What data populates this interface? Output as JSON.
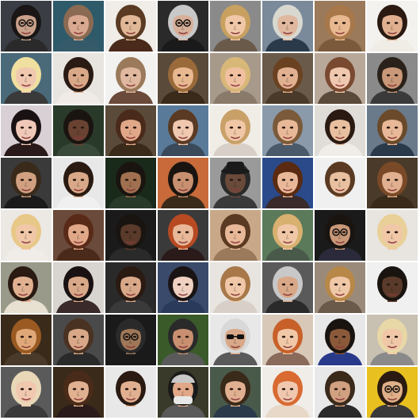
{
  "grid": {
    "rows": 8,
    "cols": 8,
    "tiles": [
      {
        "bg": "#3a3e44",
        "skin": "#c9a08a",
        "hair": "#1a1616",
        "shirt": "#2a2a2a",
        "icon": "face-with-glasses-icon"
      },
      {
        "bg": "#2f5a6a",
        "skin": "#d9a890",
        "hair": "#8a6a52",
        "shirt": "#355a6a",
        "icon": "face-icon"
      },
      {
        "bg": "#f0ede8",
        "skin": "#e0b898",
        "hair": "#5a3a22",
        "shirt": "#4a2a1a",
        "icon": "face-icon"
      },
      {
        "bg": "#2a2a2a",
        "skin": "#d8b09a",
        "hair": "#c8c8c8",
        "shirt": "#1a1a1a",
        "icon": "face-with-glasses-icon"
      },
      {
        "bg": "#8a8a8a",
        "skin": "#f0c8a8",
        "hair": "#c8a060",
        "shirt": "#6a5a4a",
        "icon": "face-icon"
      },
      {
        "bg": "#7a8a9a",
        "skin": "#e0b8a0",
        "hair": "#d8d8d0",
        "shirt": "#2a3a4a",
        "icon": "face-icon"
      },
      {
        "bg": "#9a7a5a",
        "skin": "#e8b890",
        "hair": "#a8784a",
        "shirt": "#7a5a3a",
        "icon": "face-icon"
      },
      {
        "bg": "#f4f2ee",
        "skin": "#e0b090",
        "hair": "#2a1a12",
        "shirt": "#f0ece6",
        "icon": "face-icon"
      },
      {
        "bg": "#4a6a7a",
        "skin": "#f0c8b0",
        "hair": "#f0e0a0",
        "shirt": "#3a3a3a",
        "icon": "face-icon"
      },
      {
        "bg": "#e8e4e0",
        "skin": "#d8a888",
        "hair": "#2a1a14",
        "shirt": "#f0ebe6",
        "icon": "face-icon"
      },
      {
        "bg": "#f2f2f0",
        "skin": "#e0b8a0",
        "hair": "#9a7a5a",
        "shirt": "#6a4a3a",
        "icon": "face-icon"
      },
      {
        "bg": "#5a4a3a",
        "skin": "#e8b890",
        "hair": "#9a6a3a",
        "shirt": "#3a2a1a",
        "icon": "face-icon"
      },
      {
        "bg": "#a89a8a",
        "skin": "#f0c0a0",
        "hair": "#d8b878",
        "shirt": "#8a7a6a",
        "icon": "face-icon"
      },
      {
        "bg": "#6a5a4a",
        "skin": "#e0b090",
        "hair": "#6a4222",
        "shirt": "#4a3a2a",
        "icon": "face-icon"
      },
      {
        "bg": "#b8a89a",
        "skin": "#f0c8b0",
        "hair": "#7a4a30",
        "shirt": "#5a4a3a",
        "icon": "face-icon"
      },
      {
        "bg": "#8a8a8a",
        "skin": "#c89878",
        "hair": "#2a221a",
        "shirt": "#3a3a3a",
        "icon": "face-icon"
      },
      {
        "bg": "#d8d0d4",
        "skin": "#f0c8b8",
        "hair": "#1a1212",
        "shirt": "#2a1a1a",
        "icon": "face-icon"
      },
      {
        "bg": "#2a3a2a",
        "skin": "#6a4232",
        "hair": "#1a1410",
        "shirt": "#3a4a3a",
        "icon": "face-icon"
      },
      {
        "bg": "#5a4a3a",
        "skin": "#e0a888",
        "hair": "#4a2a1a",
        "shirt": "#3a2a1a",
        "icon": "face-icon"
      },
      {
        "bg": "#5a7a9a",
        "skin": "#f0c8b0",
        "hair": "#5a3a22",
        "shirt": "#3a4a5a",
        "icon": "face-icon"
      },
      {
        "bg": "#f0ece6",
        "skin": "#f0c8a8",
        "hair": "#c8a068",
        "shirt": "#d8d0c8",
        "icon": "face-icon"
      },
      {
        "bg": "#8a9aaa",
        "skin": "#e8b898",
        "hair": "#7a5a3a",
        "shirt": "#4a5a6a",
        "icon": "face-icon"
      },
      {
        "bg": "#e0dcd8",
        "skin": "#e8c0a0",
        "hair": "#2a1a12",
        "shirt": "#f0ece8",
        "icon": "face-icon"
      },
      {
        "bg": "#6a7a8a",
        "skin": "#e8b898",
        "hair": "#6a4a2a",
        "shirt": "#2a3a4a",
        "icon": "face-icon"
      },
      {
        "bg": "#3a3a3a",
        "skin": "#d0a080",
        "hair": "#3a2a1a",
        "shirt": "#1a1a1a",
        "icon": "face-icon"
      },
      {
        "bg": "#e8e8e8",
        "skin": "#d8a888",
        "hair": "#2a1a12",
        "shirt": "#f0f0f0",
        "icon": "face-icon"
      },
      {
        "bg": "#1a2a1a",
        "skin": "#a07050",
        "hair": "#1a1410",
        "shirt": "#2a3a2a",
        "icon": "face-icon"
      },
      {
        "bg": "#c86a3a",
        "skin": "#c89070",
        "hair": "#1a1410",
        "shirt": "#3a2a1a",
        "icon": "face-icon"
      },
      {
        "bg": "#9a9a9a",
        "skin": "#6a4a3a",
        "hair": "#2a2a2a",
        "shirt": "#3a3a3a",
        "icon": "face-with-hat-icon"
      },
      {
        "bg": "#2a4a8a",
        "skin": "#e8b898",
        "hair": "#5a2a12",
        "shirt": "#3a2a2a",
        "icon": "face-icon"
      },
      {
        "bg": "#f0f0f0",
        "skin": "#e8c0a0",
        "hair": "#5a3a22",
        "shirt": "#f0f0f0",
        "icon": "face-icon"
      },
      {
        "bg": "#4a3a2a",
        "skin": "#e0b090",
        "hair": "#7a4a28",
        "shirt": "#3a2a1a",
        "icon": "face-icon"
      },
      {
        "bg": "#ece8e4",
        "skin": "#f0c8a8",
        "hair": "#e8c888",
        "shirt": "#f0ece8",
        "icon": "face-icon"
      },
      {
        "bg": "#6a4a3a",
        "skin": "#e0a888",
        "hair": "#5a2a18",
        "shirt": "#4a2a1a",
        "icon": "face-icon"
      },
      {
        "bg": "#1a1a1a",
        "skin": "#5a3a2a",
        "hair": "#1a1410",
        "shirt": "#2a2a2a",
        "icon": "face-icon"
      },
      {
        "bg": "#3a3a3a",
        "skin": "#e8b898",
        "hair": "#b84a22",
        "shirt": "#2a1a1a",
        "icon": "face-icon"
      },
      {
        "bg": "#c8a888",
        "skin": "#e8b898",
        "hair": "#5a3a22",
        "shirt": "#9a7a5a",
        "icon": "face-icon"
      },
      {
        "bg": "#5a7a5a",
        "skin": "#f0c8a8",
        "hair": "#d8b070",
        "shirt": "#4a5a4a",
        "icon": "face-icon"
      },
      {
        "bg": "#1a1a1a",
        "skin": "#c89878",
        "hair": "#1a1410",
        "shirt": "#2a2a3a",
        "icon": "face-with-glasses-icon"
      },
      {
        "bg": "#e8e4e0",
        "skin": "#f0c8a8",
        "hair": "#e8d098",
        "shirt": "#e8e4e0",
        "icon": "face-icon"
      },
      {
        "bg": "#9a9a8a",
        "skin": "#e0b090",
        "hair": "#2a1a12",
        "shirt": "#e8e0d0",
        "icon": "face-profile-icon"
      },
      {
        "bg": "#d8d4d0",
        "skin": "#d8a888",
        "hair": "#1a1212",
        "shirt": "#3a2a2a",
        "icon": "face-icon"
      },
      {
        "bg": "#2a2a2a",
        "skin": "#d8a888",
        "hair": "#2a1a12",
        "shirt": "#3a3a3a",
        "icon": "face-icon"
      },
      {
        "bg": "#3a4a6a",
        "skin": "#f0d0c0",
        "hair": "#1a1414",
        "shirt": "#2a3a5a",
        "icon": "face-icon"
      },
      {
        "bg": "#e8e4e0",
        "skin": "#f0c8a8",
        "hair": "#a87848",
        "shirt": "#d8d0c8",
        "icon": "face-icon"
      },
      {
        "bg": "#5a5a5a",
        "skin": "#d8a888",
        "hair": "#c8c8c8",
        "shirt": "#2a2a2a",
        "icon": "face-icon"
      },
      {
        "bg": "#9a8a7a",
        "skin": "#f0c8a8",
        "hair": "#b88848",
        "shirt": "#6a5a4a",
        "icon": "face-icon"
      },
      {
        "bg": "#f0f0f0",
        "skin": "#5a3a2a",
        "hair": "#1a1410",
        "shirt": "#f0f0f0",
        "icon": "face-icon"
      },
      {
        "bg": "#3a2a1a",
        "skin": "#e0a878",
        "hair": "#9a5a22",
        "shirt": "#4a3a2a",
        "icon": "face-icon"
      },
      {
        "bg": "#4a4a4a",
        "skin": "#d8a888",
        "hair": "#4a3222",
        "shirt": "#2a2a2a",
        "icon": "face-icon"
      },
      {
        "bg": "#1a1a1a",
        "skin": "#a07858",
        "hair": "#2a2a2a",
        "shirt": "#1a1a1a",
        "icon": "face-with-glasses-icon"
      },
      {
        "bg": "#3a5a2a",
        "skin": "#c89070",
        "hair": "#2a2a2a",
        "shirt": "#5a5a5a",
        "icon": "face-icon"
      },
      {
        "bg": "#e8e8e8",
        "skin": "#d8a888",
        "hair": "#d8d8d8",
        "shirt": "#5a5a5a",
        "icon": "face-with-sunglasses-icon"
      },
      {
        "bg": "#d8c8b8",
        "skin": "#f0c8a8",
        "hair": "#c8602a",
        "shirt": "#8a6a5a",
        "icon": "face-icon"
      },
      {
        "bg": "#e8e8e8",
        "skin": "#8a5a3a",
        "hair": "#1a1410",
        "shirt": "#2a3a8a",
        "icon": "face-icon"
      },
      {
        "bg": "#c8c0b0",
        "skin": "#f0c8a8",
        "hair": "#e8d8a8",
        "shirt": "#8a8a8a",
        "icon": "face-icon"
      },
      {
        "bg": "#5a5a5a",
        "skin": "#f0c8b0",
        "hair": "#e8d8b8",
        "shirt": "#3a3a3a",
        "icon": "face-icon"
      },
      {
        "bg": "#3a2a1a",
        "skin": "#e0b090",
        "hair": "#4a2a18",
        "shirt": "#2a1a1a",
        "icon": "face-icon"
      },
      {
        "bg": "#e8e8e8",
        "skin": "#e0b090",
        "hair": "#2a1a12",
        "shirt": "#e8e8e8",
        "icon": "face-icon"
      },
      {
        "bg": "#3a3a2a",
        "skin": "#e0a888",
        "hair": "#1a1a1a",
        "shirt": "#5a5a5a",
        "icon": "face-with-bandana-icon"
      },
      {
        "bg": "#4a5a4a",
        "skin": "#e0b090",
        "hair": "#3a2a1a",
        "shirt": "#2a3a4a",
        "icon": "face-icon"
      },
      {
        "bg": "#f0ece8",
        "skin": "#f0c8b0",
        "hair": "#d86a32",
        "shirt": "#e8d8c8",
        "icon": "face-icon"
      },
      {
        "bg": "#e8e8e8",
        "skin": "#d0a080",
        "hair": "#3a2a1a",
        "shirt": "#2a2a2a",
        "icon": "face-icon"
      },
      {
        "bg": "#e8c020",
        "skin": "#e0b088",
        "hair": "#2a1a12",
        "shirt": "#3a3a3a",
        "icon": "face-with-glasses-icon"
      }
    ]
  }
}
